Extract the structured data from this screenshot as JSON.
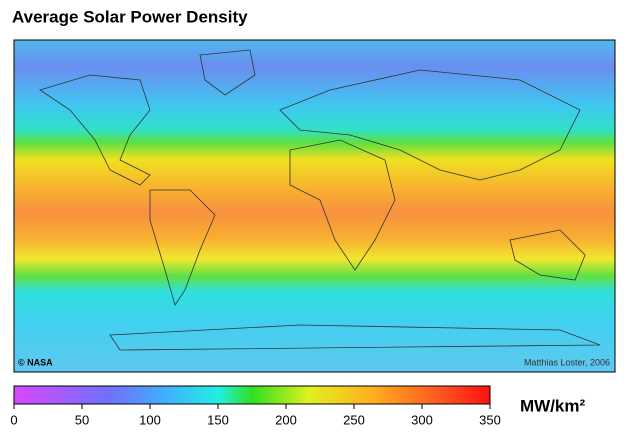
{
  "title": "Average Solar Power Density",
  "map": {
    "credit_left": "© NASA",
    "credit_right": "Matthias Loster, 2006"
  },
  "colorbar": {
    "range": [
      0,
      350
    ],
    "ticks": [
      0,
      50,
      100,
      150,
      200,
      250,
      300,
      350
    ],
    "unit": "MW/km²"
  }
}
